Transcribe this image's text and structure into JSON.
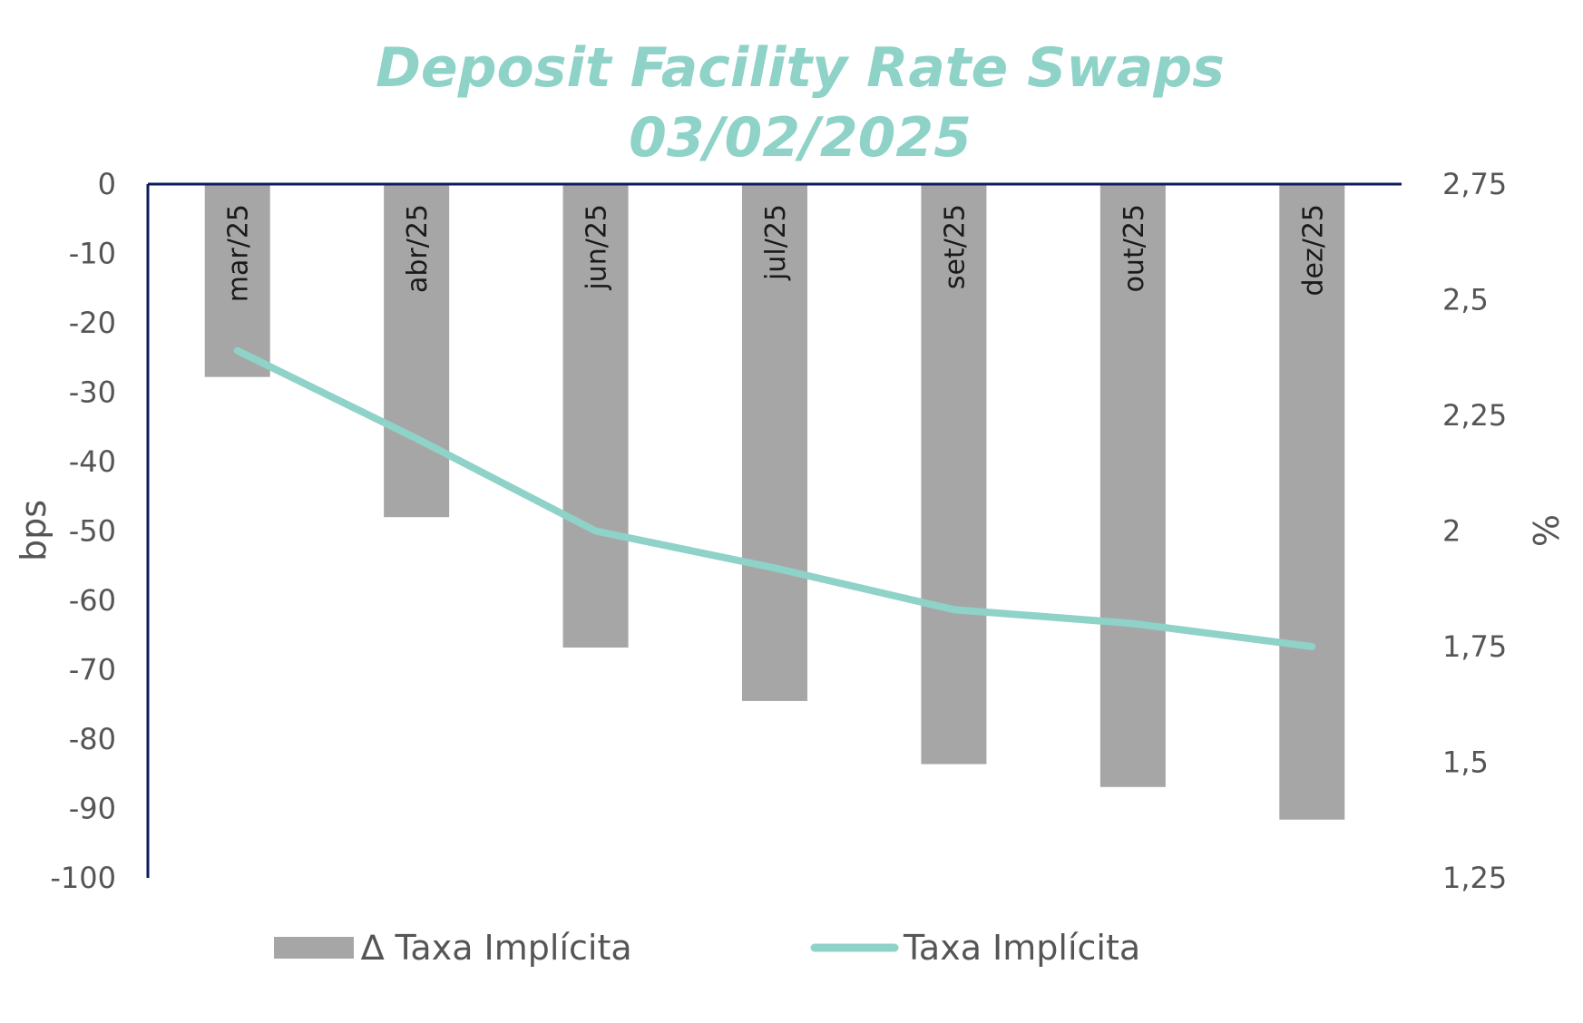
{
  "chart_data": {
    "type": "bar",
    "title": [
      "Deposit Facility Rate Swaps",
      "03/02/2025"
    ],
    "categories": [
      "mar/25",
      "abr/25",
      "jun/25",
      "jul/25",
      "set/25",
      "out/25",
      "dez/25"
    ],
    "series": [
      {
        "name": "∆ Taxa Implícita",
        "type": "bar",
        "axis": "left",
        "values": [
          -27.8,
          -48,
          -66.8,
          -74.5,
          -83.6,
          -86.9,
          -91.6
        ]
      },
      {
        "name": "Taxa Implícita",
        "type": "line",
        "axis": "right",
        "values": [
          2.39,
          2.2,
          2.0,
          1.92,
          1.83,
          1.8,
          1.75
        ]
      }
    ],
    "ylabel": "bps",
    "ylim": [
      -100,
      0
    ],
    "yticks": [
      0,
      -10,
      -20,
      -30,
      -40,
      -50,
      -60,
      -70,
      -80,
      -90,
      -100
    ],
    "ytick_labels": [
      "0",
      "-10",
      "-20",
      "-30",
      "-40",
      "-50",
      "-60",
      "-70",
      "-80",
      "-90",
      "-100"
    ],
    "y2label": "%",
    "y2lim": [
      1.25,
      2.75
    ],
    "y2ticks": [
      2.75,
      2.5,
      2.25,
      2.0,
      1.75,
      1.5,
      1.25
    ],
    "y2tick_labels": [
      "2,75",
      "2,5",
      "2,25",
      "2",
      "1,75",
      "1,5",
      "1,25"
    ],
    "grid": false,
    "legend_position": "bottom",
    "colors": {
      "title": "#8ED2C8",
      "bar": "#A6A6A6",
      "line": "#8ED2C8",
      "axis": "#0B1B5E"
    }
  }
}
